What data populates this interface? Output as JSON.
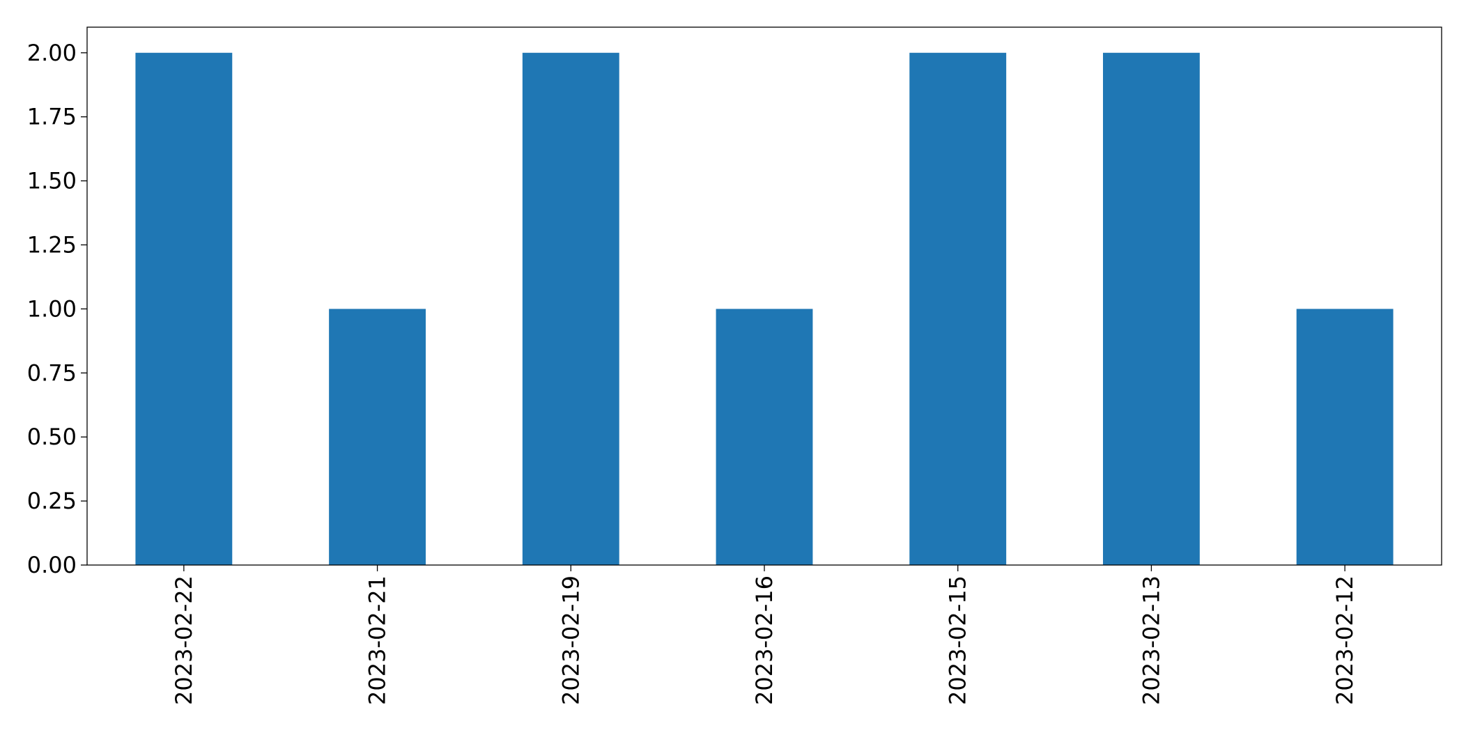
{
  "chart_data": {
    "type": "bar",
    "categories": [
      "2023-02-22",
      "2023-02-21",
      "2023-02-19",
      "2023-02-16",
      "2023-02-15",
      "2023-02-13",
      "2023-02-12"
    ],
    "values": [
      2,
      1,
      2,
      1,
      2,
      2,
      1
    ],
    "yticks": [
      "0.00",
      "0.25",
      "0.50",
      "0.75",
      "1.00",
      "1.25",
      "1.50",
      "1.75",
      "2.00"
    ],
    "ylim": [
      0,
      2.1
    ],
    "title": "",
    "xlabel": "",
    "ylabel": "",
    "bar_color": "#1f77b4",
    "grid": false,
    "legend": "none"
  }
}
